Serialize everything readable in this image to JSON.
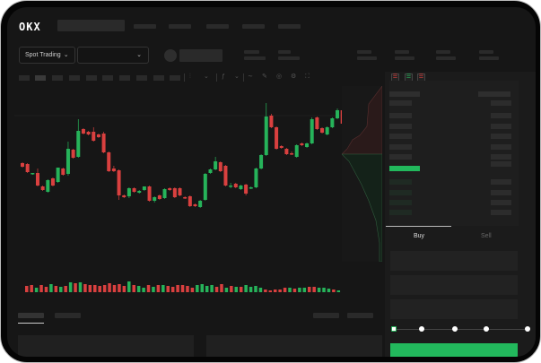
{
  "header": {
    "logo": "OKX"
  },
  "trade_bar": {
    "mode_label": "Spot Trading",
    "mode_chevron": "chevron-down-icon",
    "pair_chevron": "chevron-down-icon"
  },
  "order_form": {
    "tabs": [
      "Buy",
      "Sell"
    ],
    "active_tab": "Buy",
    "slider_percent": 0
  },
  "colors": {
    "up": "#26b35a",
    "down": "#d9403f",
    "accent": "#22b85c",
    "background": "#161616"
  },
  "chart_data": {
    "type": "candlestick",
    "candles": [
      [
        69,
        70,
        64,
        65
      ],
      [
        68,
        69,
        58,
        59
      ],
      [
        57,
        58,
        56,
        58
      ],
      [
        58,
        63,
        43,
        44
      ],
      [
        43,
        44,
        38,
        39
      ],
      [
        37,
        51,
        36,
        50
      ],
      [
        52,
        53,
        43,
        44
      ],
      [
        48,
        64,
        47,
        64
      ],
      [
        63,
        64,
        55,
        56
      ],
      [
        57,
        93,
        55,
        85
      ],
      [
        84,
        85,
        74,
        75
      ],
      [
        76,
        118,
        75,
        105
      ],
      [
        107,
        108,
        101,
        102
      ],
      [
        104,
        105,
        100,
        101
      ],
      [
        104,
        109,
        93,
        94
      ],
      [
        101,
        102,
        97,
        98
      ],
      [
        102,
        104,
        80,
        81
      ],
      [
        81,
        82,
        59,
        60
      ],
      [
        63,
        66,
        59,
        60
      ],
      [
        61,
        62,
        28,
        33
      ],
      [
        33,
        34,
        30,
        31
      ],
      [
        32,
        42,
        30,
        41
      ],
      [
        41,
        42,
        36,
        37
      ],
      [
        36,
        39,
        35,
        38
      ],
      [
        39,
        43,
        38,
        43
      ],
      [
        43,
        44,
        26,
        27
      ],
      [
        27,
        32,
        25,
        31
      ],
      [
        33,
        34,
        28,
        29
      ],
      [
        30,
        41,
        29,
        40
      ],
      [
        41,
        42,
        38,
        39
      ],
      [
        41,
        42,
        30,
        31
      ],
      [
        41,
        42,
        32,
        33
      ],
      [
        31,
        32,
        29,
        30
      ],
      [
        32,
        33,
        20,
        21
      ],
      [
        23,
        24,
        20,
        21
      ],
      [
        20,
        28,
        19,
        27
      ],
      [
        28,
        58,
        27,
        57
      ],
      [
        58,
        63,
        57,
        62
      ],
      [
        62,
        76,
        61,
        71
      ],
      [
        70,
        71,
        59,
        60
      ],
      [
        66,
        67,
        43,
        44
      ],
      [
        43,
        47,
        41,
        44
      ],
      [
        46,
        47,
        41,
        42
      ],
      [
        40,
        45,
        39,
        44
      ],
      [
        45,
        46,
        33,
        35
      ],
      [
        41,
        43,
        40,
        42
      ],
      [
        42,
        64,
        41,
        63
      ],
      [
        63,
        79,
        62,
        78
      ],
      [
        78,
        136,
        77,
        121
      ],
      [
        122,
        124,
        108,
        109
      ],
      [
        109,
        110,
        84,
        85
      ],
      [
        88,
        89,
        85,
        86
      ],
      [
        85,
        86,
        78,
        79
      ],
      [
        80,
        82,
        78,
        79
      ],
      [
        76,
        90,
        75,
        89
      ],
      [
        91,
        92,
        88,
        89
      ],
      [
        87,
        92,
        86,
        91
      ],
      [
        91,
        120,
        90,
        118
      ],
      [
        120,
        121,
        106,
        107
      ],
      [
        108,
        109,
        102,
        103
      ],
      [
        101,
        110,
        100,
        109
      ],
      [
        109,
        120,
        108,
        119
      ],
      [
        119,
        130,
        118,
        128
      ],
      [
        128,
        129,
        112,
        113
      ],
      [
        111,
        119,
        110,
        117
      ]
    ],
    "volume": [
      7,
      8,
      5,
      8,
      6,
      9,
      7,
      6,
      7,
      11,
      10,
      11,
      9,
      8,
      8,
      7,
      8,
      10,
      8,
      9,
      7,
      12,
      8,
      7,
      5,
      8,
      6,
      8,
      8,
      7,
      6,
      8,
      8,
      7,
      5,
      8,
      9,
      7,
      8,
      6,
      9,
      5,
      7,
      6,
      6,
      8,
      6,
      7,
      5,
      3,
      2,
      3,
      3,
      5,
      5,
      4,
      5,
      5,
      6,
      6,
      5,
      5,
      4,
      3,
      2
    ],
    "grid": false
  }
}
